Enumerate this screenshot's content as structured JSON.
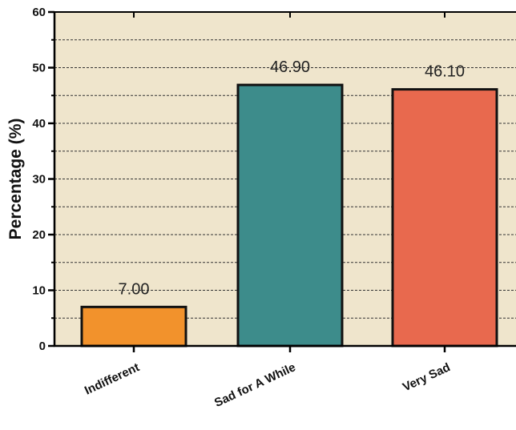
{
  "chart_data": {
    "type": "bar",
    "title": "",
    "xlabel": "",
    "ylabel": "Percentage (%)",
    "ylim": [
      0,
      60
    ],
    "yticks": [
      0,
      10,
      20,
      30,
      40,
      50,
      60
    ],
    "grid": true,
    "categories": [
      "Indifferent",
      "Sad for A While",
      "Very Sad"
    ],
    "values": [
      7.0,
      46.9,
      46.1
    ],
    "data_labels": [
      "7.00",
      "46.90",
      "46.10"
    ],
    "colors": {
      "bars": [
        "#f2922c",
        "#3d8c8b",
        "#e8694e"
      ],
      "plot_background": "#efe5cc",
      "gridline": "#333333",
      "axis": "#000000"
    }
  }
}
